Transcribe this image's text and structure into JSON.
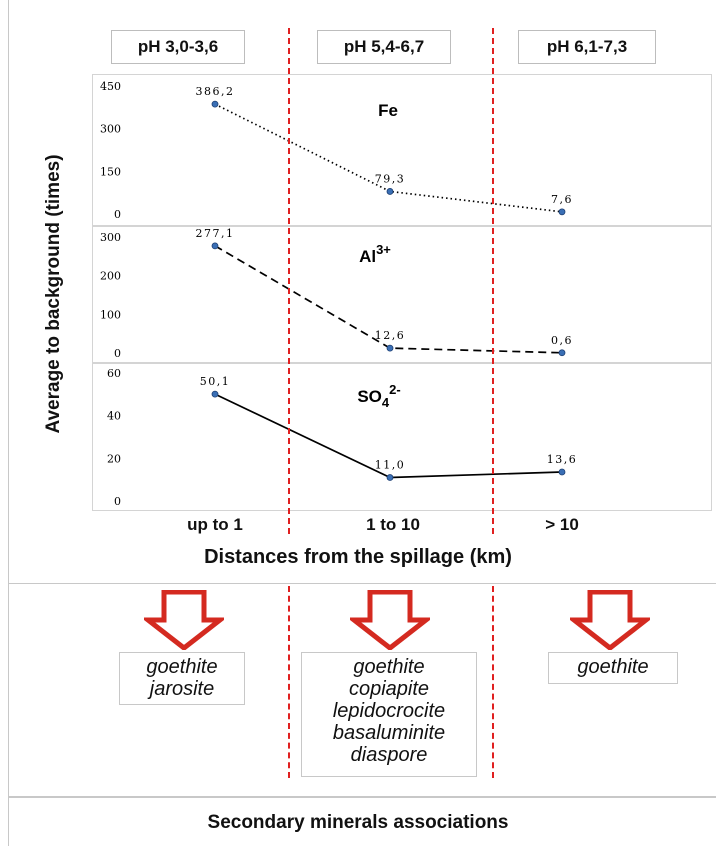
{
  "header": {
    "ph_zones": [
      "pH 3,0-3,6",
      "pH 5,4-6,7",
      "pH 6,1-7,3"
    ]
  },
  "chart_data": {
    "type": "line",
    "categories": [
      "up to 1",
      "1 to 10",
      "> 10"
    ],
    "xlabel": "Distances from the spillage (km)",
    "ylabel": "Average to background (times)",
    "panels": [
      {
        "name": "Fe",
        "label_main": "Fe",
        "label_sup": "",
        "label_sub": "",
        "values": [
          386.2,
          79.3,
          7.6
        ],
        "value_labels": [
          "386,2",
          "79,3",
          "7,6"
        ],
        "ylim": [
          0,
          450
        ],
        "yticks": [
          0,
          150,
          300,
          450
        ],
        "line_style": "dotted"
      },
      {
        "name": "Al3+",
        "label_main": "Al",
        "label_sup": "3+",
        "label_sub": "",
        "values": [
          277.1,
          12.6,
          0.6
        ],
        "value_labels": [
          "277,1",
          "12,6",
          "0,6"
        ],
        "ylim": [
          0,
          300
        ],
        "yticks": [
          0,
          100,
          200,
          300
        ],
        "line_style": "dashed"
      },
      {
        "name": "SO42-",
        "label_main": "SO",
        "label_sub": "4",
        "label_sup": "2-",
        "values": [
          50.1,
          11.0,
          13.6
        ],
        "value_labels": [
          "50,1",
          "11,0",
          "13,6"
        ],
        "ylim": [
          0,
          60
        ],
        "yticks": [
          0,
          20,
          40,
          60
        ],
        "line_style": "solid"
      }
    ],
    "colors": {
      "line": "#000000",
      "marker": "#3a6fb5",
      "zone_divider": "#e02020",
      "arrow": "#d42a20"
    }
  },
  "minerals": {
    "title": "Secondary minerals associations",
    "zone1": [
      "goethite",
      "jarosite"
    ],
    "zone2": [
      "goethite",
      "copiapite",
      "lepidocrocite",
      "basaluminite",
      "diaspore"
    ],
    "zone3": [
      "goethite"
    ]
  }
}
